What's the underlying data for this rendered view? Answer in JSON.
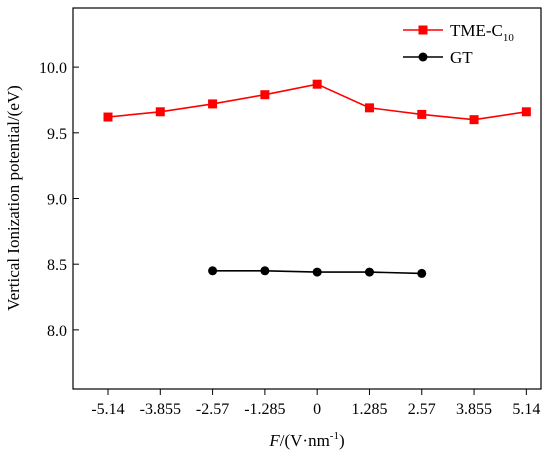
{
  "chart_data": {
    "type": "line",
    "x_categories": [
      "-5.14",
      "-3.855",
      "-2.57",
      "-1.285",
      "0",
      "1.285",
      "2.57",
      "3.855",
      "5.14"
    ],
    "x_values": [
      -5.14,
      -3.855,
      -2.57,
      -1.285,
      0,
      1.285,
      2.57,
      3.855,
      5.14
    ],
    "xlabel": {
      "italic": "F",
      "unit": "/(V·nm",
      "sup": "-1",
      "close": ")"
    },
    "ylabel": "Vertical Ionization potential/(eV)",
    "xlim": [
      -6.0,
      5.5
    ],
    "ylim": [
      7.55,
      10.45
    ],
    "yticks": [
      8.0,
      8.5,
      9.0,
      9.5,
      10.0
    ],
    "ytick_labels": [
      "8.0",
      "8.5",
      "9.0",
      "9.5",
      "10.0"
    ],
    "grid": false,
    "legend_position": "top-right",
    "series": [
      {
        "name": "TME-C",
        "name_sub": "10",
        "color": "#ff0000",
        "marker": "square",
        "x": [
          -5.14,
          -3.855,
          -2.57,
          -1.285,
          0,
          1.285,
          2.57,
          3.855,
          5.14
        ],
        "values": [
          9.62,
          9.66,
          9.72,
          9.79,
          9.87,
          9.69,
          9.64,
          9.6,
          9.66
        ]
      },
      {
        "name": "GT",
        "color": "#000000",
        "marker": "circle",
        "x": [
          -2.57,
          -1.285,
          0,
          1.285,
          2.57
        ],
        "values": [
          8.45,
          8.45,
          8.44,
          8.44,
          8.43
        ]
      }
    ]
  }
}
